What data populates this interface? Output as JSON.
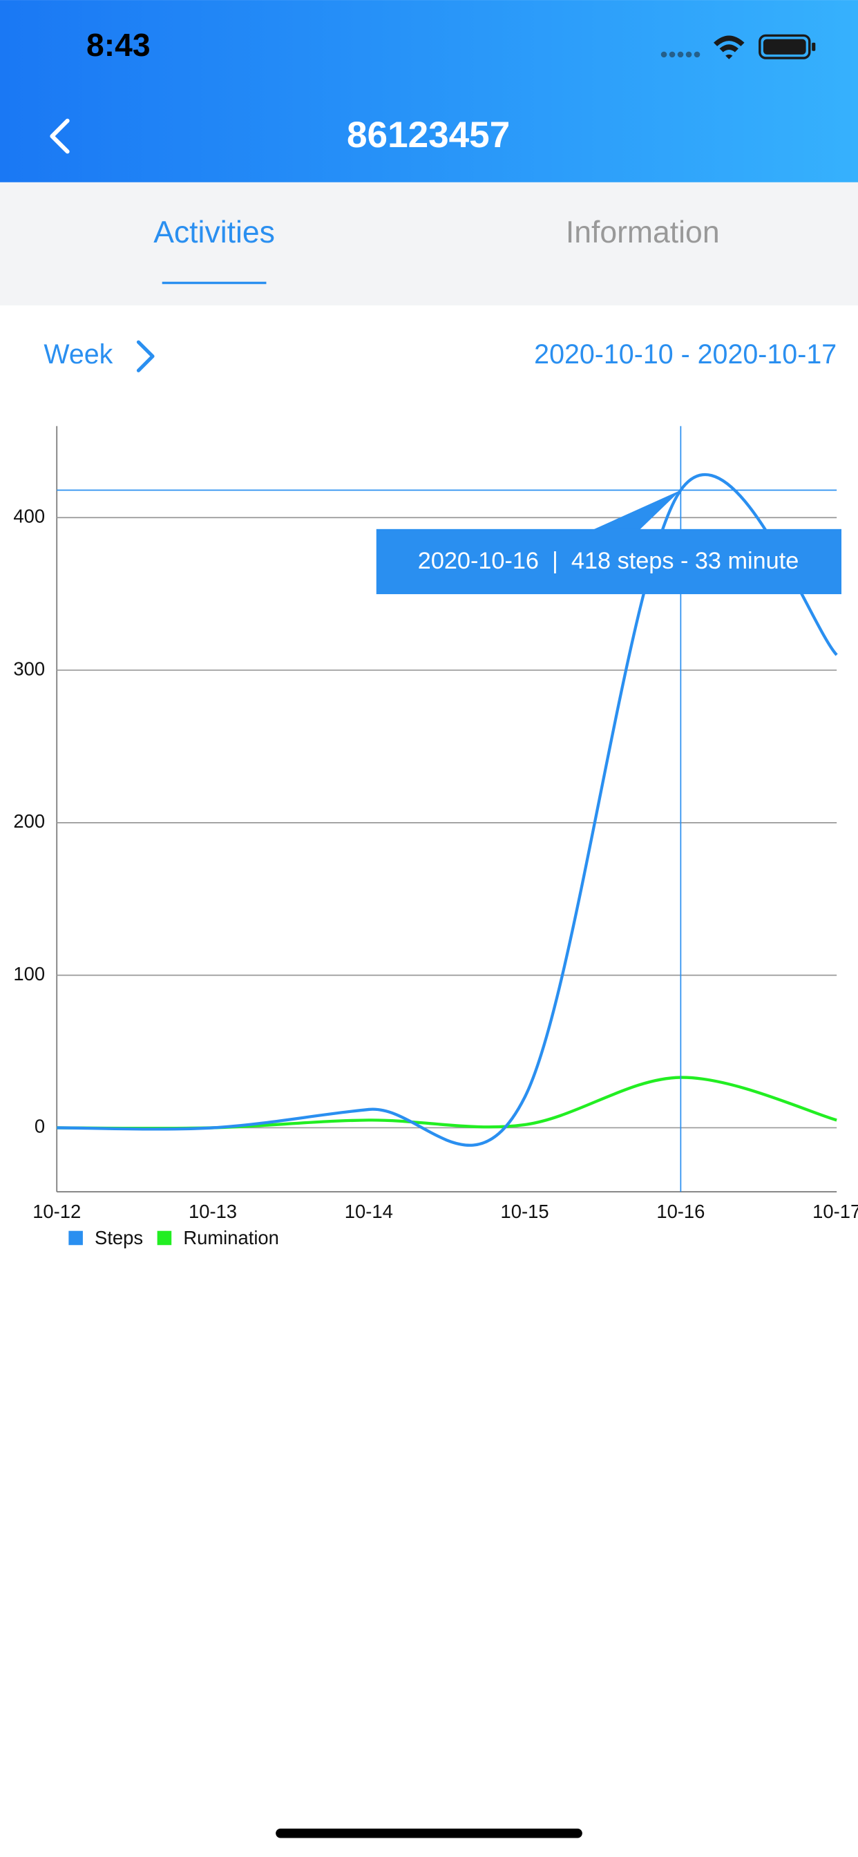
{
  "status_bar": {
    "time": "8:43"
  },
  "header": {
    "title": "86123457"
  },
  "tabs": {
    "items": [
      "Activities",
      "Information"
    ],
    "active": 0
  },
  "period": {
    "label": "Week",
    "date_range": "2020-10-10 - 2020-10-17"
  },
  "chart_data": {
    "type": "line",
    "categories": [
      "10-12",
      "10-13",
      "10-14",
      "10-15",
      "10-16",
      "10-17"
    ],
    "series": [
      {
        "name": "Steps",
        "color": "#2a8ff0",
        "values": [
          0,
          0,
          12,
          20,
          418,
          310
        ]
      },
      {
        "name": "Rumination",
        "color": "#22ee22",
        "values": [
          0,
          0,
          5,
          2,
          33,
          5
        ]
      }
    ],
    "ylim": [
      -42,
      460
    ],
    "yticks": [
      0,
      100,
      200,
      300,
      400
    ],
    "grid": true,
    "crosshair": "10-16",
    "tooltip": "2020-10-16  |  418 steps - 33 minute"
  }
}
